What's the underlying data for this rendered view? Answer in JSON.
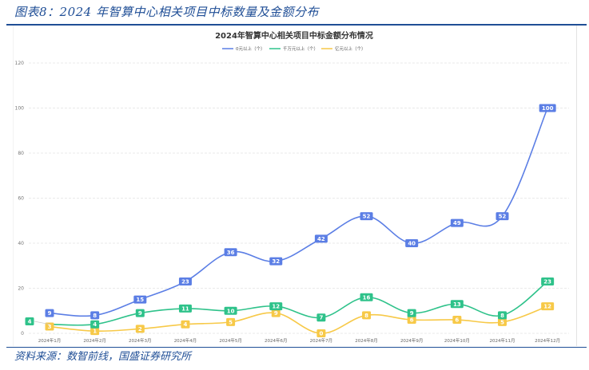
{
  "figure": {
    "caption": "图表8：2024 年智算中心相关项目中标数量及金额分布",
    "source": "资料来源：数智前线，国盛证券研究所"
  },
  "chart_data": {
    "type": "line",
    "title": "2024年智算中心相关项目中标金额分布情况",
    "xlabel": "",
    "ylabel": "",
    "ylim": [
      0,
      120
    ],
    "yticks": [
      0,
      20,
      40,
      60,
      80,
      100,
      120
    ],
    "grid": true,
    "legend_position": "top-center",
    "categories": [
      "2024年1月",
      "2024年2月",
      "2024年3月",
      "2024年4月",
      "2024年5月",
      "2024年6月",
      "2024年7月",
      "2024年8月",
      "2024年9月",
      "2024年10月",
      "2024年11月",
      "2024年12月"
    ],
    "series": [
      {
        "name": "0元以上（个）",
        "color": "#5b7ee5",
        "values": [
          9,
          8,
          15,
          23,
          36,
          32,
          42,
          52,
          40,
          49,
          52,
          100
        ]
      },
      {
        "name": "千万元以上（个）",
        "color": "#2ec28a",
        "values": [
          4,
          4,
          9,
          11,
          10,
          12,
          7,
          16,
          9,
          13,
          8,
          23
        ]
      },
      {
        "name": "亿元以上（个）",
        "color": "#f7c948",
        "values": [
          3,
          1,
          2,
          4,
          5,
          9,
          0,
          8,
          6,
          6,
          5,
          12
        ]
      }
    ],
    "data_labels": true
  }
}
